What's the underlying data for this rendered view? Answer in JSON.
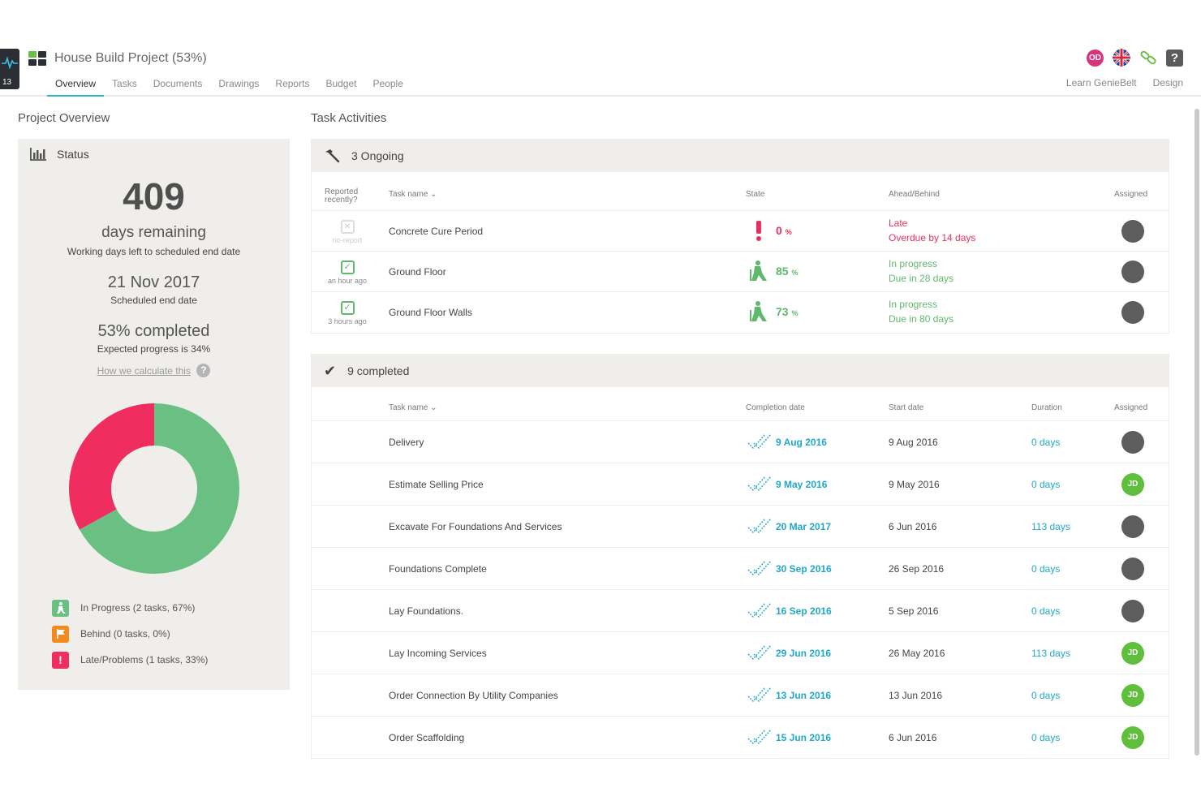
{
  "app": {
    "badge_count": "13",
    "project_title": "House Build Project (53%)",
    "avatar_initials": "OD",
    "help_glyph": "?",
    "colors": {
      "accent": "#2ab3d6",
      "green": "#6abf82",
      "red": "#ef2d5e",
      "orange": "#f48a1f"
    }
  },
  "nav": {
    "tabs": [
      {
        "label": "Overview",
        "active": true
      },
      {
        "label": "Tasks"
      },
      {
        "label": "Documents"
      },
      {
        "label": "Drawings"
      },
      {
        "label": "Reports"
      },
      {
        "label": "Budget"
      },
      {
        "label": "People"
      }
    ],
    "links": [
      "Learn GenieBelt",
      "Design"
    ]
  },
  "overview": {
    "section_title": "Project Overview",
    "status_title": "Status",
    "days_remaining": "409",
    "days_label": "days remaining",
    "days_sub": "Working days left to scheduled end date",
    "end_date": "21 Nov 2017",
    "end_date_sub": "Scheduled end date",
    "completed": "53% completed",
    "expected": "Expected progress is 34%",
    "calc_link": "How we calculate this",
    "calc_icon": "?",
    "donut": {
      "in_progress_pct": 67,
      "behind_pct": 0,
      "late_pct": 33
    },
    "legend": [
      {
        "label": "In Progress (2 tasks, 67%)",
        "icon": "worker-icon",
        "color": "#6abf82"
      },
      {
        "label": "Behind (0 tasks, 0%)",
        "icon": "flag-icon",
        "color": "#f48a1f"
      },
      {
        "label": "Late/Problems (1 tasks, 33%)",
        "icon": "exclamation-icon",
        "color": "#ef2d5e",
        "glyph": "!"
      }
    ]
  },
  "activities": {
    "section_title": "Task Activities",
    "ongoing": {
      "title": "3 Ongoing",
      "headers": {
        "reported": "Reported recently?",
        "task": "Task name",
        "state": "State",
        "ahead": "Ahead/Behind",
        "assigned": "Assigned"
      },
      "rows": [
        {
          "reported": "no-report",
          "reported_label": "no-report",
          "name": "Concrete Cure Period",
          "state_value": "0",
          "state_unit": "%",
          "status": "Late",
          "status_sub": "Overdue by 14 days",
          "kind": "late"
        },
        {
          "reported": "check",
          "reported_label": "an hour ago",
          "name": "Ground Floor",
          "state_value": "85",
          "state_unit": "%",
          "status": "In progress",
          "status_sub": "Due in 28 days",
          "kind": "progress"
        },
        {
          "reported": "check",
          "reported_label": "3 hours ago",
          "name": "Ground Floor Walls",
          "state_value": "73",
          "state_unit": "%",
          "status": "In progress",
          "status_sub": "Due in 80 days",
          "kind": "progress"
        }
      ]
    },
    "completed": {
      "title": "9 completed",
      "headers": {
        "task": "Task name",
        "completion": "Completion date",
        "start": "Start date",
        "duration": "Duration",
        "assigned": "Assigned"
      },
      "rows": [
        {
          "name": "Delivery",
          "completion": "9 Aug 2016",
          "start": "9 Aug 2016",
          "duration": "0 days",
          "assignee": "anon"
        },
        {
          "name": "Estimate Selling Price",
          "completion": "9 May 2016",
          "start": "9 May 2016",
          "duration": "0 days",
          "assignee": "JD"
        },
        {
          "name": "Excavate For Foundations And Services",
          "completion": "20 Mar 2017",
          "start": "6 Jun 2016",
          "duration": "113 days",
          "assignee": "anon"
        },
        {
          "name": "Foundations Complete",
          "completion": "30 Sep 2016",
          "start": "26 Sep 2016",
          "duration": "0 days",
          "assignee": "anon"
        },
        {
          "name": "Lay Foundations.",
          "completion": "16 Sep 2016",
          "start": "5 Sep 2016",
          "duration": "0 days",
          "assignee": "anon"
        },
        {
          "name": "Lay Incoming Services",
          "completion": "29 Jun 2016",
          "start": "26 May 2016",
          "duration": "113 days",
          "assignee": "JD"
        },
        {
          "name": "Order Connection By Utility Companies",
          "completion": "13 Jun 2016",
          "start": "13 Jun 2016",
          "duration": "0 days",
          "assignee": "JD"
        },
        {
          "name": "Order Scaffolding",
          "completion": "15 Jun 2016",
          "start": "6 Jun 2016",
          "duration": "0 days",
          "assignee": "JD"
        }
      ]
    }
  }
}
